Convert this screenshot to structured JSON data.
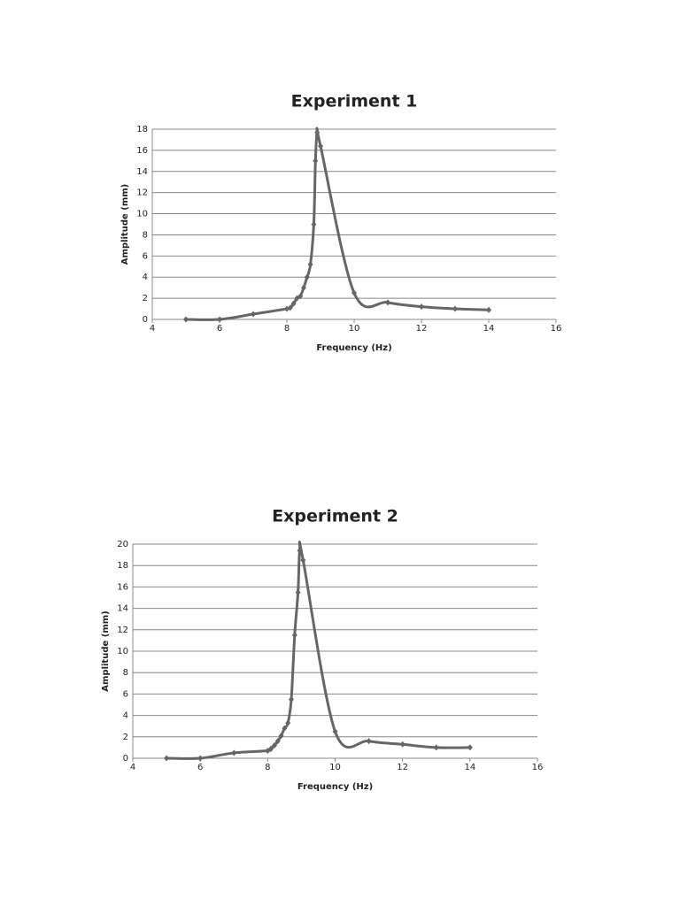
{
  "chart_data": [
    {
      "type": "line",
      "title": "Experiment 1",
      "x_label": "Frequency (Hz)",
      "y_label": "Amplitude (mm)",
      "x": [
        5,
        6,
        7,
        8,
        8.1,
        8.2,
        8.3,
        8.4,
        8.5,
        8.6,
        8.7,
        8.8,
        8.85,
        8.9,
        9,
        10,
        11,
        12,
        13,
        14
      ],
      "series": [
        {
          "color": "#666666",
          "values": [
            0,
            0,
            0.5,
            1,
            1.1,
            1.5,
            2,
            2.2,
            3,
            4,
            5.2,
            9,
            15,
            17.7,
            16.4,
            2.5,
            1.6,
            1.2,
            1,
            0.9
          ]
        }
      ],
      "xlim": [
        4,
        16
      ],
      "xticks": [
        4,
        6,
        8,
        10,
        12,
        14,
        16
      ],
      "ylim": [
        0,
        18
      ],
      "yticks": [
        0,
        2,
        4,
        6,
        8,
        10,
        12,
        14,
        16,
        18
      ],
      "grid": true
    },
    {
      "type": "line",
      "title": "Experiment 2",
      "x_label": "Frequency (Hz)",
      "y_label": "Amplitude (mm)",
      "x": [
        5,
        6,
        7,
        8,
        8.1,
        8.2,
        8.3,
        8.4,
        8.5,
        8.6,
        8.7,
        8.8,
        8.9,
        8.95,
        9.05,
        10,
        11,
        12,
        13,
        14
      ],
      "series": [
        {
          "color": "#666666",
          "values": [
            0,
            0,
            0.5,
            0.7,
            0.9,
            1.2,
            1.6,
            2.1,
            2.8,
            3.3,
            5.5,
            11.5,
            15.5,
            19.4,
            18.5,
            2.5,
            1.6,
            1.3,
            1,
            1
          ]
        }
      ],
      "xlim": [
        4,
        16
      ],
      "xticks": [
        4,
        6,
        8,
        10,
        12,
        14,
        16
      ],
      "ylim": [
        0,
        20
      ],
      "yticks": [
        0,
        2,
        4,
        6,
        8,
        10,
        12,
        14,
        16,
        18,
        20
      ],
      "grid": true
    }
  ]
}
